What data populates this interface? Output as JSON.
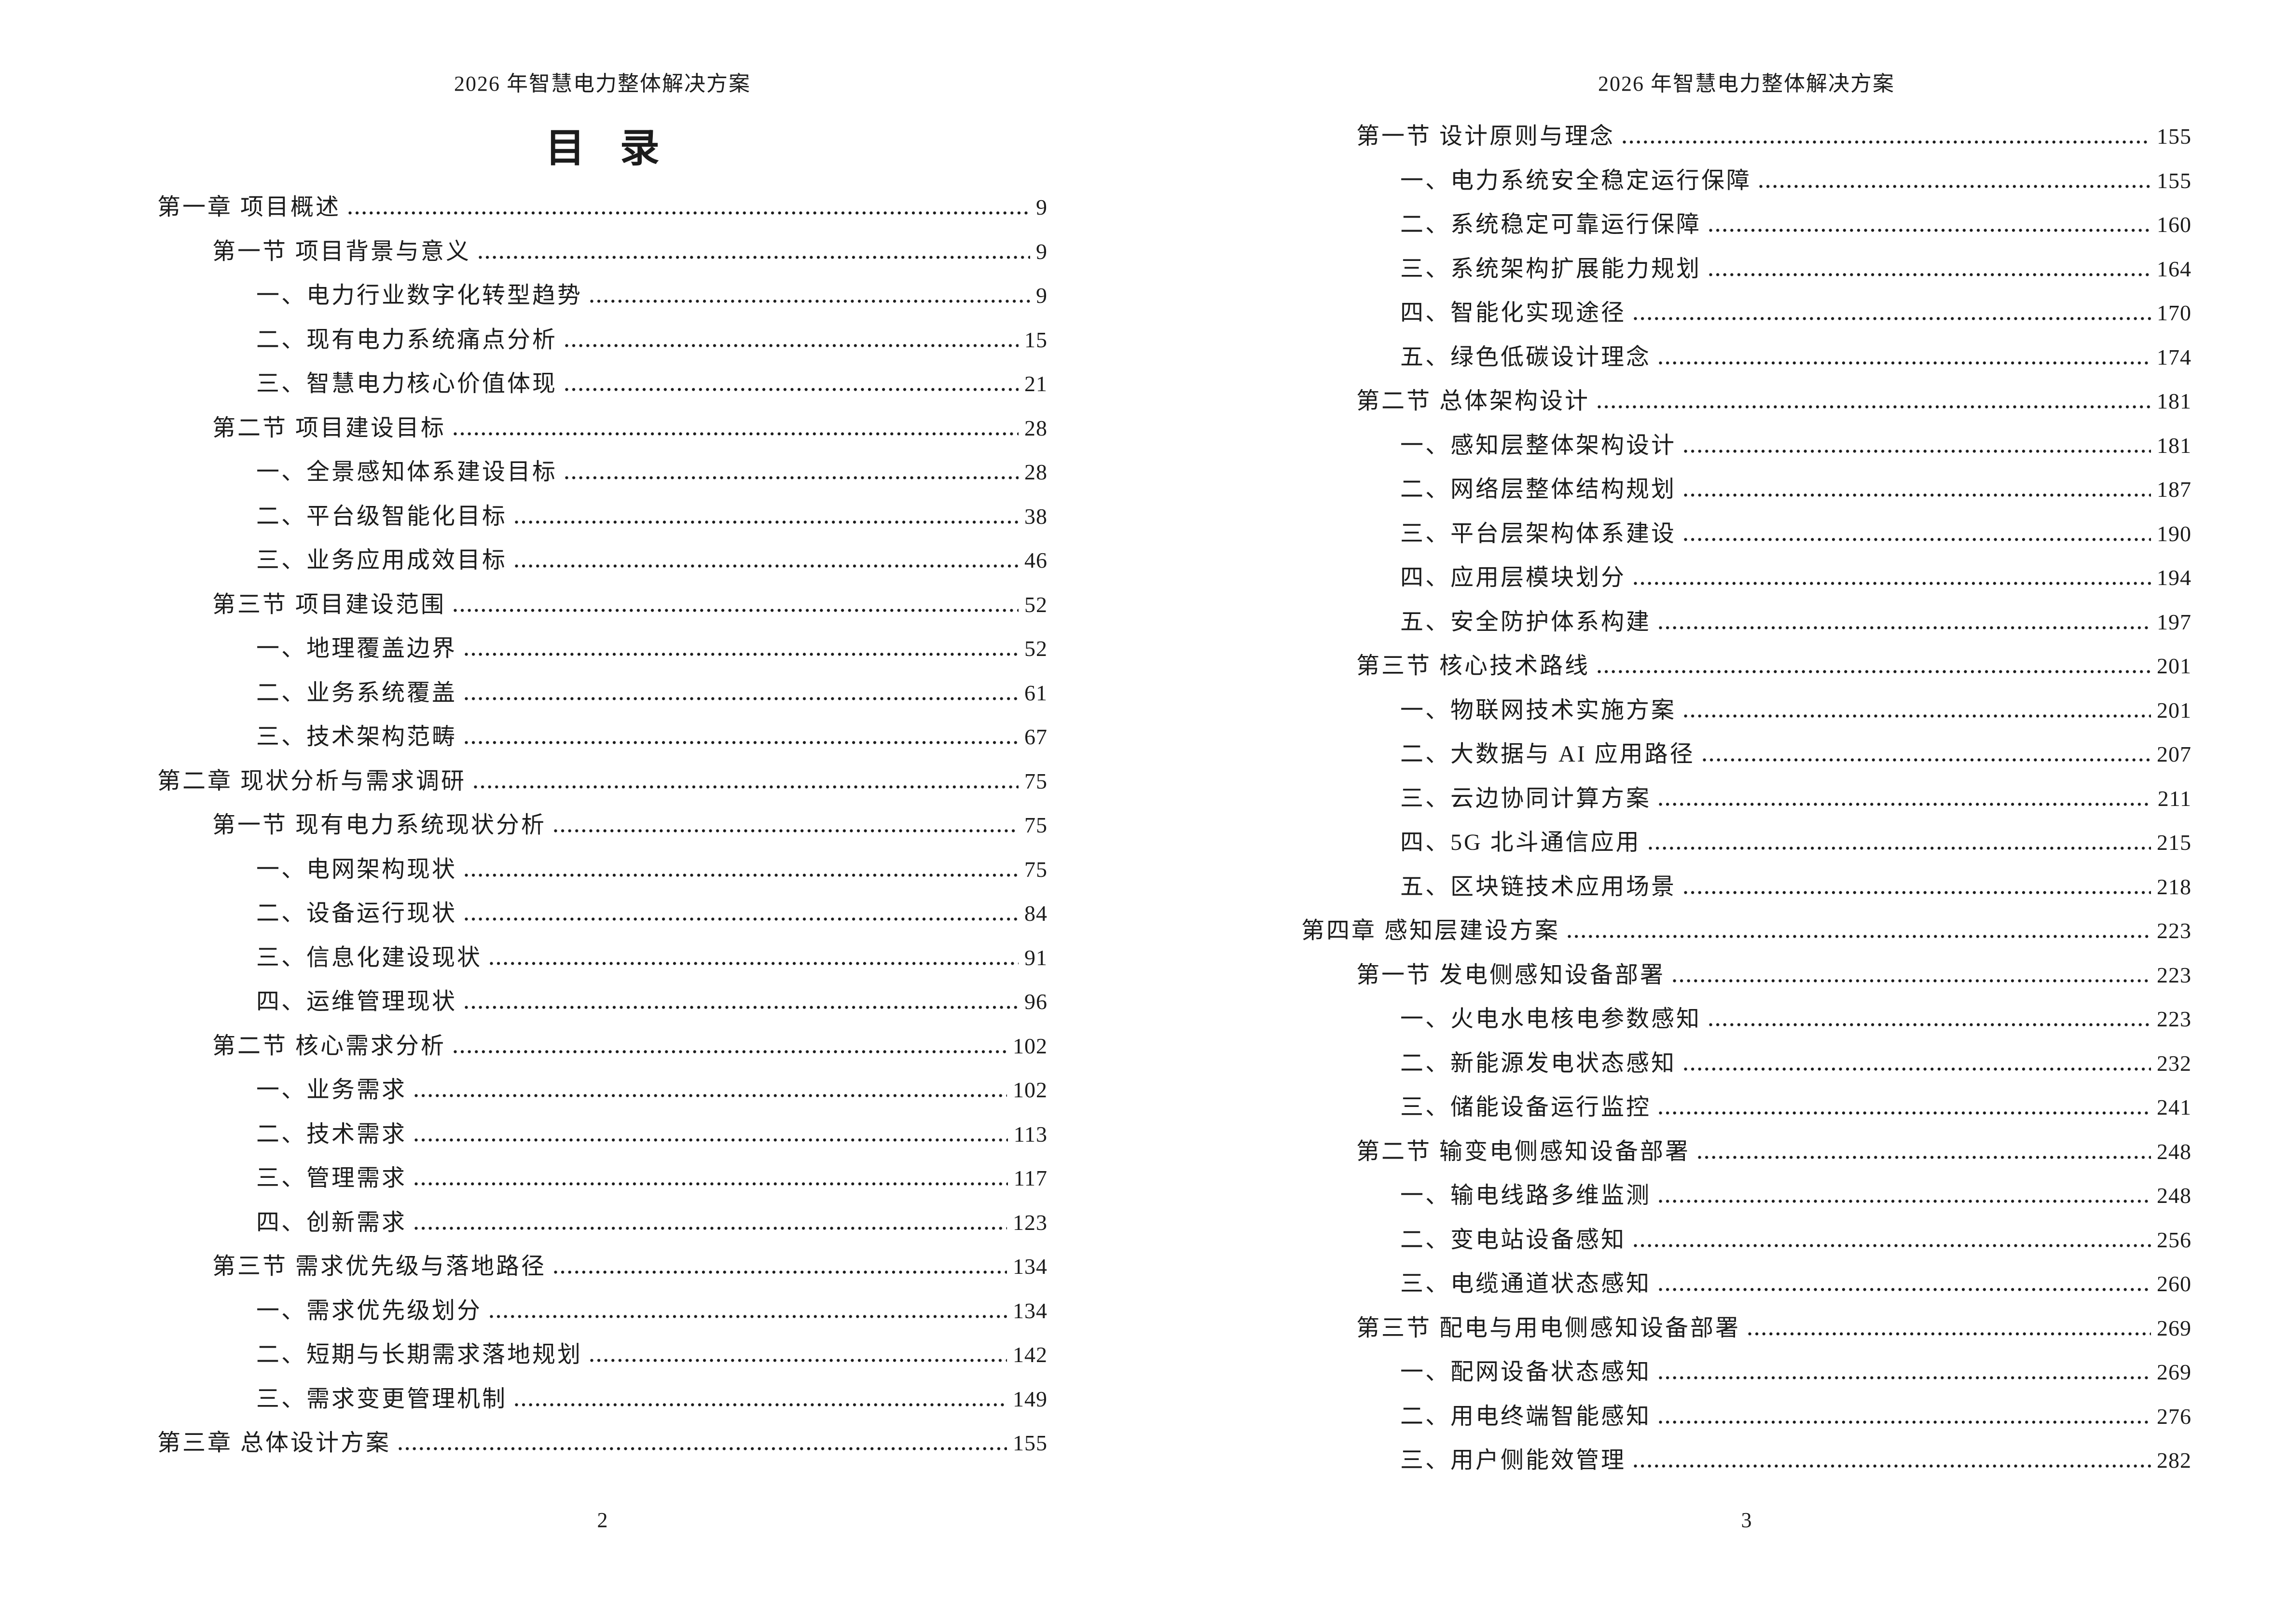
{
  "doc_header": "2026 年智慧电力整体解决方案",
  "toc_title": "目 录",
  "colors": {
    "text": "#1c1c1c",
    "background": "#ffffff"
  },
  "pages": [
    {
      "footer": "2",
      "entries": [
        {
          "level": 0,
          "label": "第一章 项目概述",
          "page": "9"
        },
        {
          "level": 1,
          "label": "第一节 项目背景与意义",
          "page": "9"
        },
        {
          "level": 2,
          "label": "一、电力行业数字化转型趋势",
          "page": "9"
        },
        {
          "level": 2,
          "label": "二、现有电力系统痛点分析",
          "page": "15"
        },
        {
          "level": 2,
          "label": "三、智慧电力核心价值体现",
          "page": "21"
        },
        {
          "level": 1,
          "label": "第二节 项目建设目标",
          "page": "28"
        },
        {
          "level": 2,
          "label": "一、全景感知体系建设目标",
          "page": "28"
        },
        {
          "level": 2,
          "label": "二、平台级智能化目标",
          "page": "38"
        },
        {
          "level": 2,
          "label": "三、业务应用成效目标",
          "page": "46"
        },
        {
          "level": 1,
          "label": "第三节 项目建设范围",
          "page": "52"
        },
        {
          "level": 2,
          "label": "一、地理覆盖边界",
          "page": "52"
        },
        {
          "level": 2,
          "label": "二、业务系统覆盖",
          "page": "61"
        },
        {
          "level": 2,
          "label": "三、技术架构范畴",
          "page": "67"
        },
        {
          "level": 0,
          "label": "第二章 现状分析与需求调研",
          "page": "75"
        },
        {
          "level": 1,
          "label": "第一节 现有电力系统现状分析",
          "page": "75"
        },
        {
          "level": 2,
          "label": "一、电网架构现状",
          "page": "75"
        },
        {
          "level": 2,
          "label": "二、设备运行现状",
          "page": "84"
        },
        {
          "level": 2,
          "label": "三、信息化建设现状",
          "page": "91"
        },
        {
          "level": 2,
          "label": "四、运维管理现状",
          "page": "96"
        },
        {
          "level": 1,
          "label": "第二节 核心需求分析",
          "page": "102"
        },
        {
          "level": 2,
          "label": "一、业务需求",
          "page": "102"
        },
        {
          "level": 2,
          "label": "二、技术需求",
          "page": "113"
        },
        {
          "level": 2,
          "label": "三、管理需求",
          "page": "117"
        },
        {
          "level": 2,
          "label": "四、创新需求",
          "page": "123"
        },
        {
          "level": 1,
          "label": "第三节 需求优先级与落地路径",
          "page": "134"
        },
        {
          "level": 2,
          "label": "一、需求优先级划分",
          "page": "134"
        },
        {
          "level": 2,
          "label": "二、短期与长期需求落地规划",
          "page": "142"
        },
        {
          "level": 2,
          "label": "三、需求变更管理机制",
          "page": "149"
        },
        {
          "level": 0,
          "label": "第三章 总体设计方案",
          "page": "155"
        }
      ]
    },
    {
      "footer": "3",
      "entries": [
        {
          "level": 1,
          "label": "第一节 设计原则与理念",
          "page": "155"
        },
        {
          "level": 2,
          "label": "一、电力系统安全稳定运行保障",
          "page": "155"
        },
        {
          "level": 2,
          "label": "二、系统稳定可靠运行保障",
          "page": "160"
        },
        {
          "level": 2,
          "label": "三、系统架构扩展能力规划",
          "page": "164"
        },
        {
          "level": 2,
          "label": "四、智能化实现途径",
          "page": "170"
        },
        {
          "level": 2,
          "label": "五、绿色低碳设计理念",
          "page": "174"
        },
        {
          "level": 1,
          "label": "第二节 总体架构设计",
          "page": "181"
        },
        {
          "level": 2,
          "label": "一、感知层整体架构设计",
          "page": "181"
        },
        {
          "level": 2,
          "label": "二、网络层整体结构规划",
          "page": "187"
        },
        {
          "level": 2,
          "label": "三、平台层架构体系建设",
          "page": "190"
        },
        {
          "level": 2,
          "label": "四、应用层模块划分",
          "page": "194"
        },
        {
          "level": 2,
          "label": "五、安全防护体系构建",
          "page": "197"
        },
        {
          "level": 1,
          "label": "第三节 核心技术路线",
          "page": "201"
        },
        {
          "level": 2,
          "label": "一、物联网技术实施方案",
          "page": "201"
        },
        {
          "level": 2,
          "label": "二、大数据与 AI 应用路径",
          "page": "207"
        },
        {
          "level": 2,
          "label": "三、云边协同计算方案",
          "page": "211"
        },
        {
          "level": 2,
          "label": "四、5G 北斗通信应用",
          "page": "215"
        },
        {
          "level": 2,
          "label": "五、区块链技术应用场景",
          "page": "218"
        },
        {
          "level": 0,
          "label": "第四章 感知层建设方案",
          "page": "223"
        },
        {
          "level": 1,
          "label": "第一节 发电侧感知设备部署",
          "page": "223"
        },
        {
          "level": 2,
          "label": "一、火电水电核电参数感知",
          "page": "223"
        },
        {
          "level": 2,
          "label": "二、新能源发电状态感知",
          "page": "232"
        },
        {
          "level": 2,
          "label": "三、储能设备运行监控",
          "page": "241"
        },
        {
          "level": 1,
          "label": "第二节 输变电侧感知设备部署",
          "page": "248"
        },
        {
          "level": 2,
          "label": "一、输电线路多维监测",
          "page": "248"
        },
        {
          "level": 2,
          "label": "二、变电站设备感知",
          "page": "256"
        },
        {
          "level": 2,
          "label": "三、电缆通道状态感知",
          "page": "260"
        },
        {
          "level": 1,
          "label": "第三节 配电与用电侧感知设备部署",
          "page": "269"
        },
        {
          "level": 2,
          "label": "一、配网设备状态感知",
          "page": "269"
        },
        {
          "level": 2,
          "label": "二、用电终端智能感知",
          "page": "276"
        },
        {
          "level": 2,
          "label": "三、用户侧能效管理",
          "page": "282"
        }
      ]
    }
  ]
}
